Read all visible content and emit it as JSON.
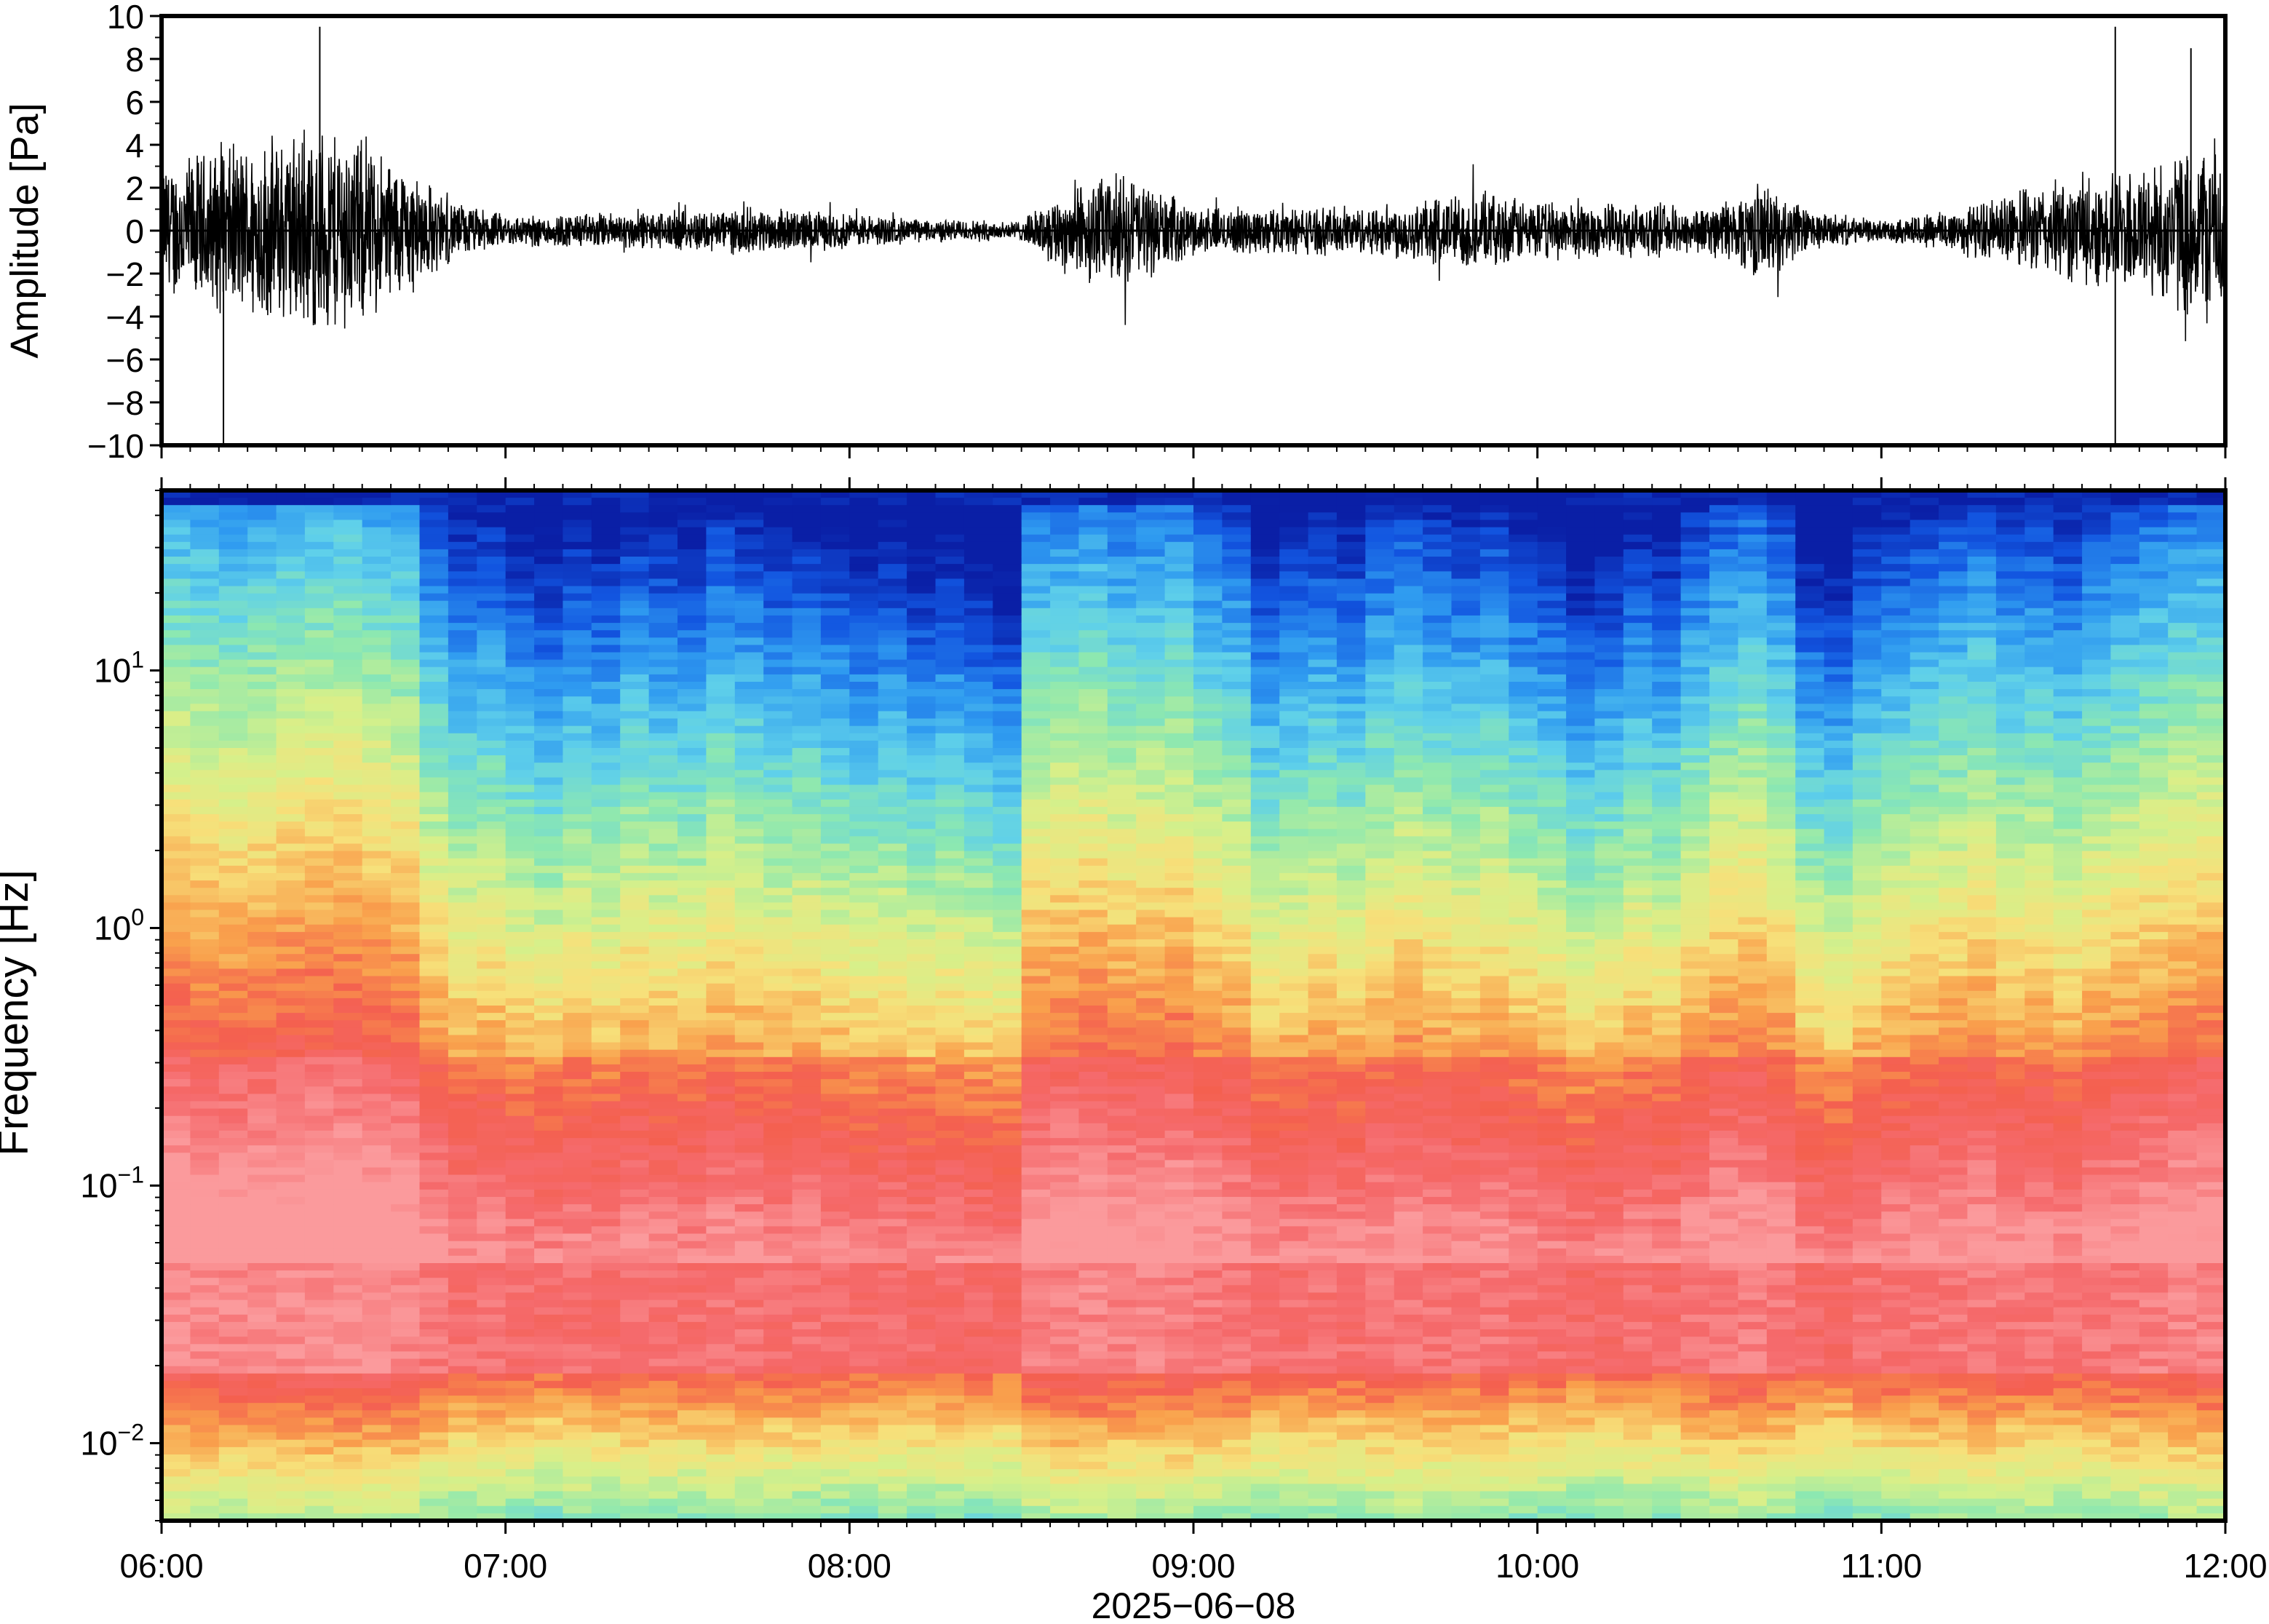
{
  "chart_data": [
    {
      "type": "line",
      "panel": "waveform",
      "ylabel": "Amplitude [Pa]",
      "xlabel": "",
      "ylim": [
        -10,
        10
      ],
      "yticks": [
        10,
        8,
        6,
        4,
        2,
        0,
        -2,
        -4,
        -6,
        -8,
        -10
      ],
      "ytick_labels": [
        "10",
        "8",
        "6",
        "4",
        "2",
        "0",
        "−2",
        "−4",
        "−6",
        "−8",
        "−10"
      ],
      "xlim_hours": [
        6,
        12
      ],
      "series": [
        {
          "values_note_free": true,
          "envelope": {
            "t_hours": [
              6.0,
              6.25,
              6.5,
              6.7,
              6.85,
              7.0,
              7.5,
              7.7,
              8.0,
              8.2,
              8.5,
              8.65,
              8.8,
              9.0,
              9.5,
              9.8,
              10.0,
              10.5,
              10.65,
              10.8,
              11.0,
              11.3,
              11.5,
              11.7,
              12.0
            ],
            "amplitude_pa": [
              3.5,
              4.5,
              5.5,
              3.5,
              1.5,
              0.8,
              1.0,
              1.2,
              0.9,
              0.6,
              0.5,
              2.5,
              3.0,
              1.2,
              1.2,
              2.0,
              1.5,
              1.2,
              2.5,
              1.0,
              0.5,
              1.5,
              2.5,
              3.0,
              5.0
            ]
          },
          "peaks": [
            {
              "t_hours": 6.18,
              "amplitude_pa": -10
            },
            {
              "t_hours": 6.46,
              "amplitude_pa": 9.5
            },
            {
              "t_hours": 11.68,
              "amplitude_pa": 9.5
            },
            {
              "t_hours": 11.68,
              "amplitude_pa": -10
            },
            {
              "t_hours": 11.9,
              "amplitude_pa": 8.5
            }
          ]
        }
      ]
    },
    {
      "type": "heatmap",
      "panel": "spectrogram",
      "ylabel": "Frequency [Hz]",
      "xlabel": "2025−06−08",
      "yscale": "log",
      "ylim": [
        0.005,
        50
      ],
      "yticks": [
        0.01,
        0.1,
        1,
        10
      ],
      "ytick_labels": [
        {
          "base": "10",
          "exp": "−2"
        },
        {
          "base": "10",
          "exp": "−1"
        },
        {
          "base": "10",
          "exp": "0"
        },
        {
          "base": "10",
          "exp": "1"
        }
      ],
      "xlim_hours": [
        6,
        12
      ],
      "xticks_hours": [
        6,
        7,
        8,
        9,
        10,
        11,
        12
      ],
      "xtick_labels": [
        "06:00",
        "07:00",
        "08:00",
        "09:00",
        "10:00",
        "11:00",
        "12:00"
      ],
      "colormap": [
        "#0a1fa6",
        "#1255e0",
        "#2f9bf0",
        "#5fd0ea",
        "#8de8b0",
        "#d6f08a",
        "#f7e07a",
        "#f9a04c",
        "#f4604f",
        "#f56a6c",
        "#fb9a9c"
      ],
      "column_intensity": [
        0.85,
        0.82,
        0.8,
        0.83,
        0.86,
        0.88,
        0.9,
        0.84,
        0.8,
        0.55,
        0.42,
        0.45,
        0.35,
        0.3,
        0.4,
        0.35,
        0.45,
        0.4,
        0.38,
        0.5,
        0.45,
        0.38,
        0.42,
        0.36,
        0.3,
        0.35,
        0.28,
        0.32,
        0.25,
        0.2,
        0.7,
        0.72,
        0.75,
        0.68,
        0.7,
        0.72,
        0.6,
        0.55,
        0.35,
        0.4,
        0.45,
        0.4,
        0.5,
        0.55,
        0.48,
        0.45,
        0.5,
        0.4,
        0.35,
        0.25,
        0.3,
        0.4,
        0.35,
        0.5,
        0.6,
        0.65,
        0.55,
        0.3,
        0.25,
        0.4,
        0.45,
        0.5,
        0.55,
        0.6,
        0.5,
        0.52,
        0.45,
        0.55,
        0.6,
        0.65,
        0.7,
        0.72
      ]
    }
  ]
}
